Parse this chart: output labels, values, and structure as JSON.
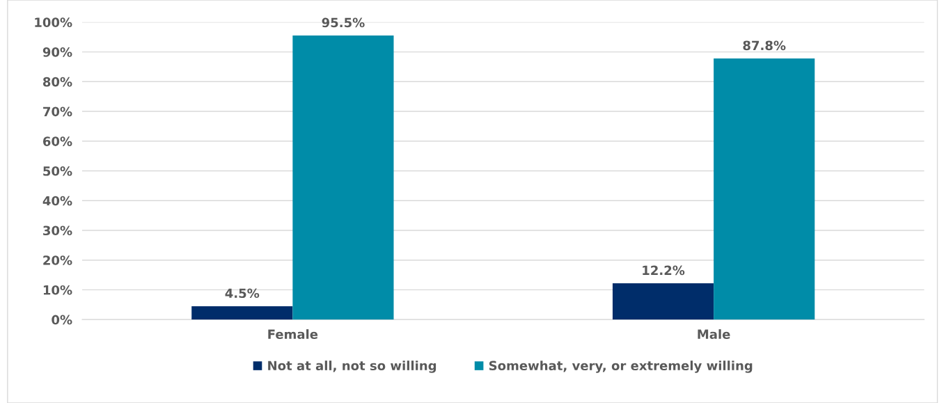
{
  "chart_data": {
    "type": "bar",
    "categories": [
      "Female",
      "Male"
    ],
    "series": [
      {
        "name": "Not at all, not so willing",
        "color": "#002d6a",
        "values": [
          4.5,
          12.2
        ]
      },
      {
        "name": "Somewhat, very, or extremely willing",
        "color": "#008ca8",
        "values": [
          95.5,
          87.8
        ]
      }
    ],
    "ylim": [
      0,
      100
    ],
    "yticks": [
      {
        "value": 0,
        "label": "0%"
      },
      {
        "value": 10,
        "label": "10%"
      },
      {
        "value": 20,
        "label": "20%"
      },
      {
        "value": 30,
        "label": "30%"
      },
      {
        "value": 40,
        "label": "40%"
      },
      {
        "value": 50,
        "label": "50%"
      },
      {
        "value": 60,
        "label": "60%"
      },
      {
        "value": 70,
        "label": "70%"
      },
      {
        "value": 80,
        "label": "80%"
      },
      {
        "value": 90,
        "label": "90%"
      },
      {
        "value": 100,
        "label": "100%"
      }
    ],
    "value_labels": [
      [
        "4.5%",
        "12.2%"
      ],
      [
        "95.5%",
        "87.8%"
      ]
    ],
    "grid": "y",
    "legend": "bottom"
  }
}
